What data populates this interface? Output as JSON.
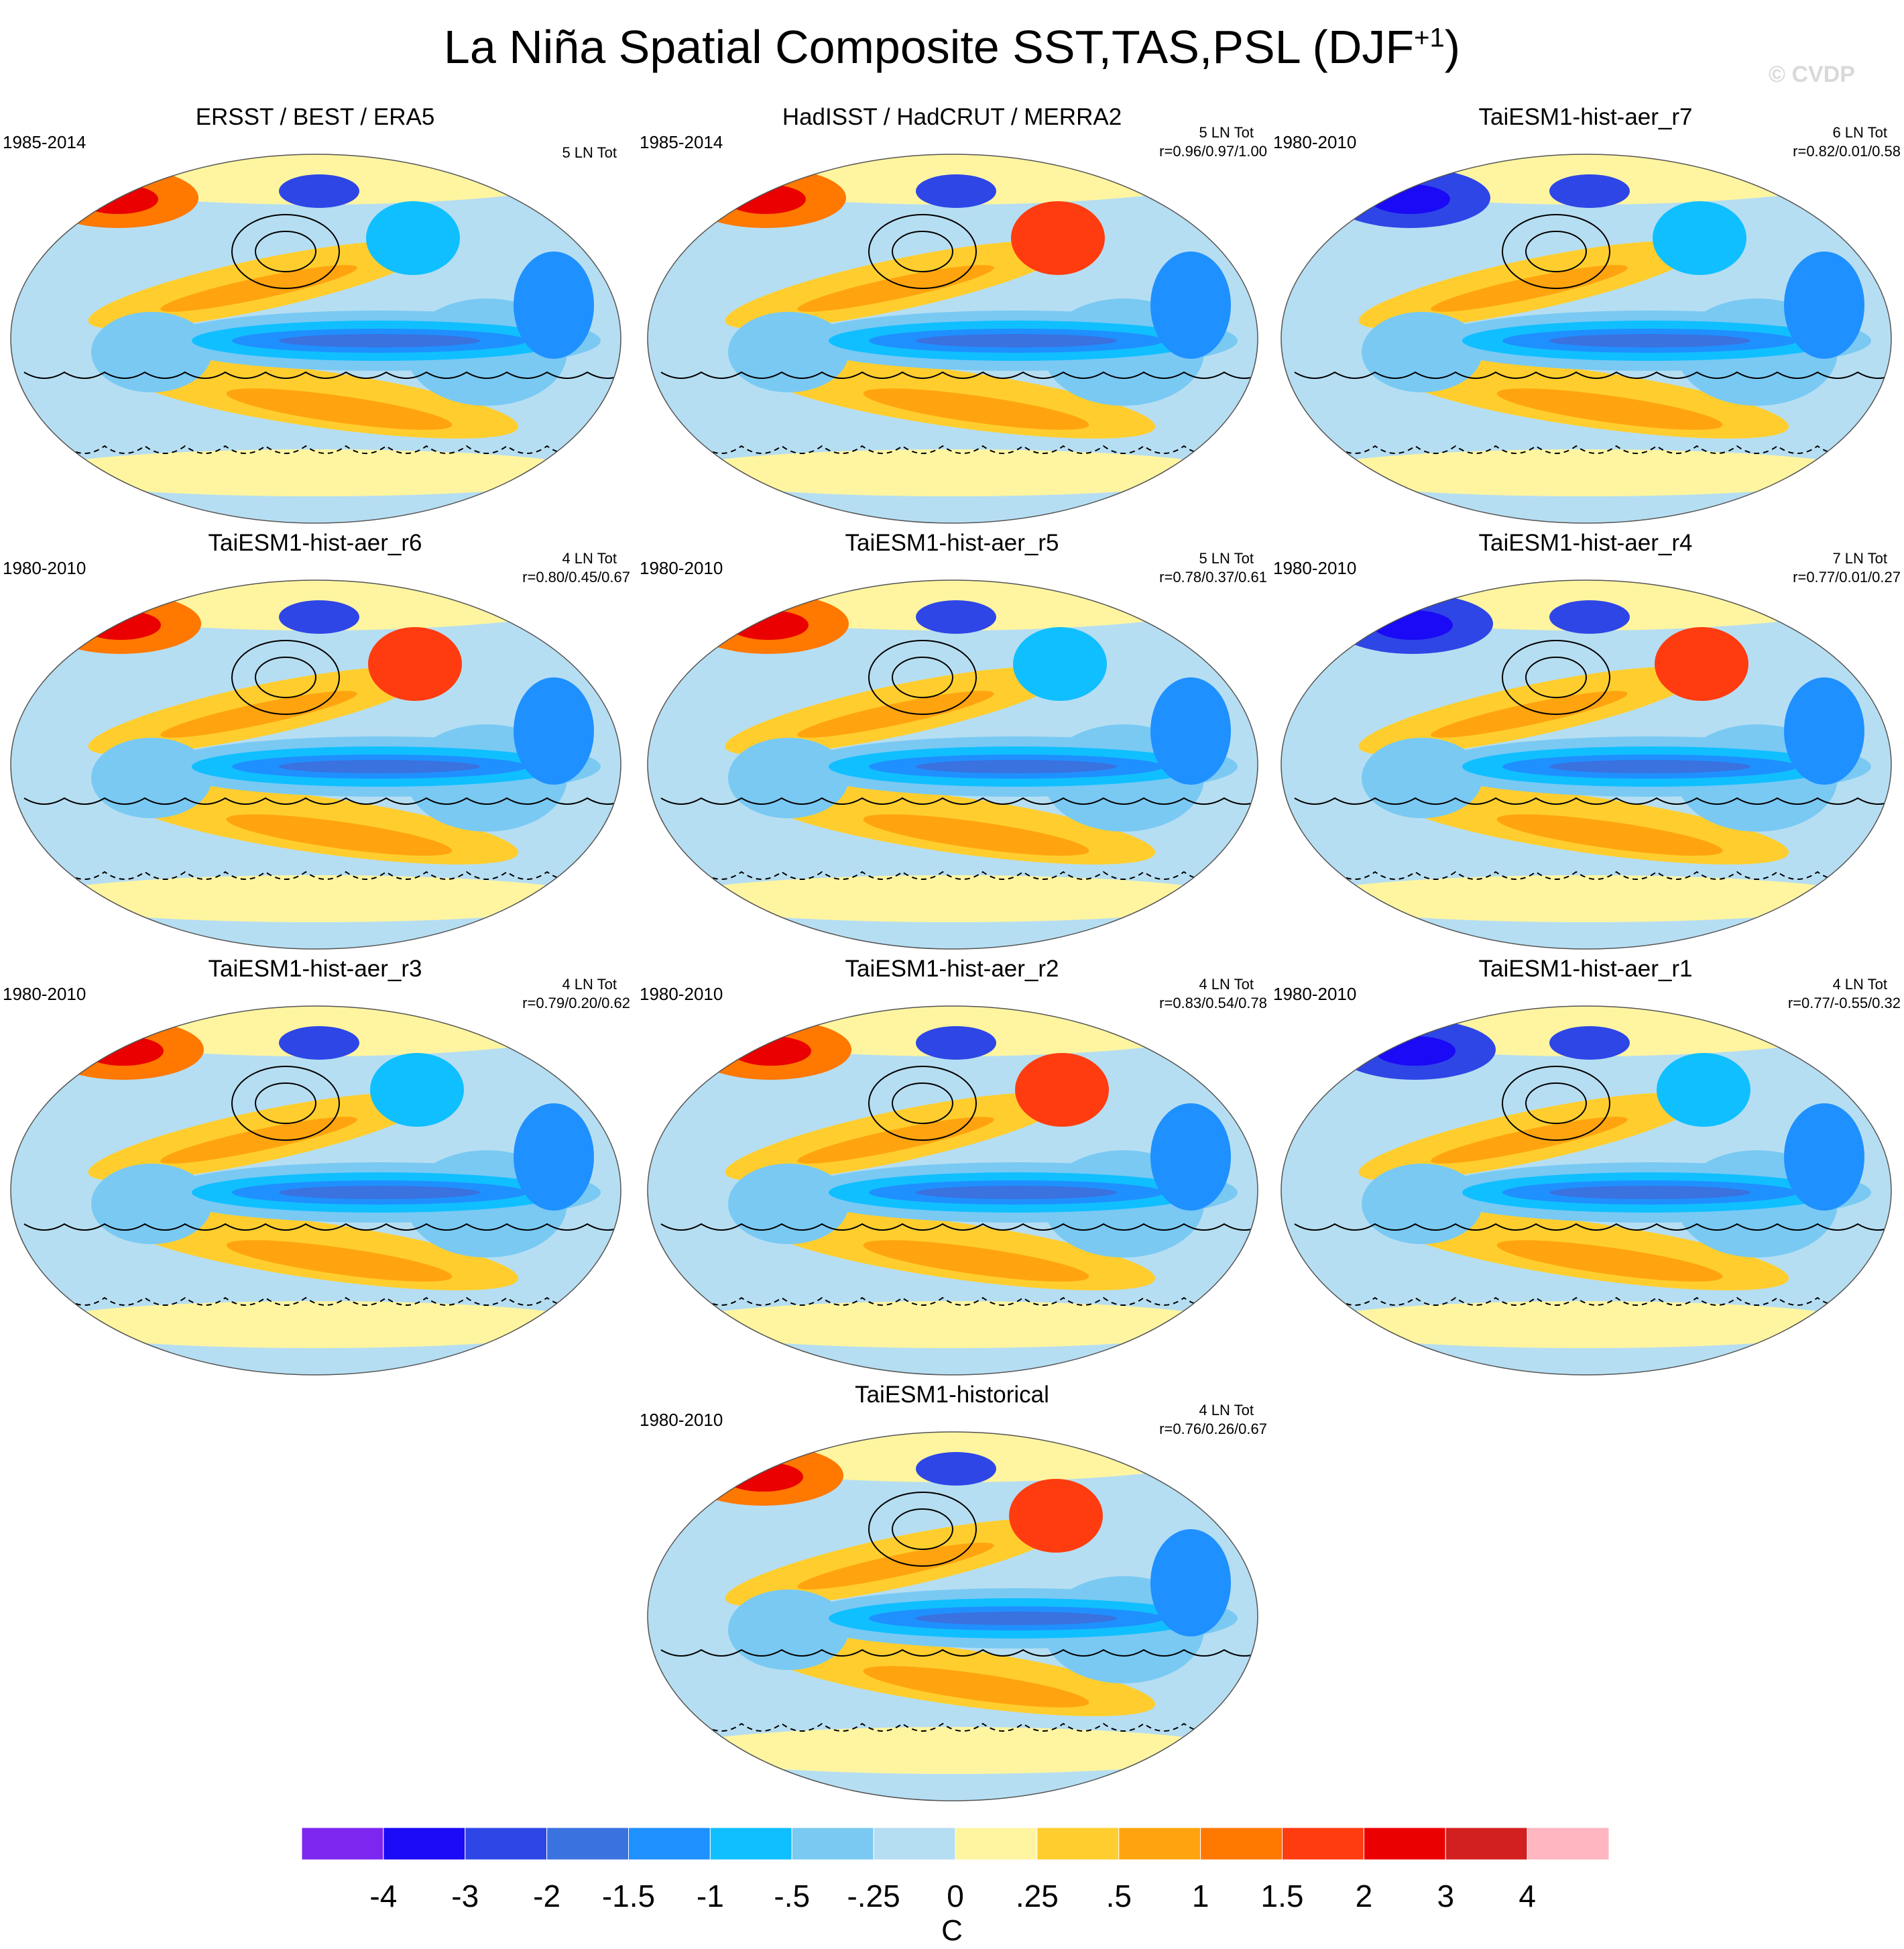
{
  "title": {
    "main": "La Niña Spatial Composite SST,TAS,PSL (DJF",
    "sup": "+1",
    "close": ")"
  },
  "watermark": "© CVDP",
  "panels": [
    {
      "title": "ERSST / BEST / ERA5",
      "period": "1985-2014",
      "count": "5 LN Tot",
      "corr": ""
    },
    {
      "title": "HadISST / HadCRUT / MERRA2",
      "period": "1985-2014",
      "count": "5 LN Tot",
      "corr": "r=0.96/0.97/1.00"
    },
    {
      "title": "TaiESM1-hist-aer_r7",
      "period": "1980-2010",
      "count": "6 LN Tot",
      "corr": "r=0.82/0.01/0.58"
    },
    {
      "title": "TaiESM1-hist-aer_r6",
      "period": "1980-2010",
      "count": "4 LN Tot",
      "corr": "r=0.80/0.45/0.67"
    },
    {
      "title": "TaiESM1-hist-aer_r5",
      "period": "1980-2010",
      "count": "5 LN Tot",
      "corr": "r=0.78/0.37/0.61"
    },
    {
      "title": "TaiESM1-hist-aer_r4",
      "period": "1980-2010",
      "count": "7 LN Tot",
      "corr": "r=0.77/0.01/0.27"
    },
    {
      "title": "TaiESM1-hist-aer_r3",
      "period": "1980-2010",
      "count": "4 LN Tot",
      "corr": "r=0.79/0.20/0.62"
    },
    {
      "title": "TaiESM1-hist-aer_r2",
      "period": "1980-2010",
      "count": "4 LN Tot",
      "corr": "r=0.83/0.54/0.78"
    },
    {
      "title": "TaiESM1-hist-aer_r1",
      "period": "1980-2010",
      "count": "4 LN Tot",
      "corr": "r=0.77/-0.55/0.32"
    },
    {
      "title": "TaiESM1-historical",
      "period": "1980-2010",
      "count": "4 LN Tot",
      "corr": "r=0.76/0.26/0.67"
    }
  ],
  "chart_data": {
    "type": "heatmap",
    "title": "La Niña Spatial Composite SST,TAS,PSL (DJF+1)",
    "units": "C",
    "colorbar": {
      "tick_labels": [
        "-4",
        "-3",
        "-2",
        "-1.5",
        "-1",
        "-.5",
        "-.25",
        "0",
        ".25",
        ".5",
        "1",
        "1.5",
        "2",
        "3",
        "4"
      ],
      "colors": [
        "#7d26f0",
        "#1a0af5",
        "#2e46e6",
        "#3a72e0",
        "#1f90ff",
        "#10bfff",
        "#79c9f3",
        "#b6def2",
        "#fff5a0",
        "#ffce2e",
        "#ffa40f",
        "#ff7800",
        "#ff3c0f",
        "#ea0000",
        "#d21f1f",
        "#ffb6c1"
      ]
    },
    "maps": [
      {
        "name": "ERSST / BEST / ERA5",
        "period": "1985-2014",
        "la_nina_events": 5
      },
      {
        "name": "HadISST / HadCRUT / MERRA2",
        "period": "1985-2014",
        "la_nina_events": 5,
        "pattern_corr": [
          0.96,
          0.97,
          1.0
        ]
      },
      {
        "name": "TaiESM1-hist-aer_r7",
        "period": "1980-2010",
        "la_nina_events": 6,
        "pattern_corr": [
          0.82,
          0.01,
          0.58
        ]
      },
      {
        "name": "TaiESM1-hist-aer_r6",
        "period": "1980-2010",
        "la_nina_events": 4,
        "pattern_corr": [
          0.8,
          0.45,
          0.67
        ]
      },
      {
        "name": "TaiESM1-hist-aer_r5",
        "period": "1980-2010",
        "la_nina_events": 5,
        "pattern_corr": [
          0.78,
          0.37,
          0.61
        ]
      },
      {
        "name": "TaiESM1-hist-aer_r4",
        "period": "1980-2010",
        "la_nina_events": 7,
        "pattern_corr": [
          0.77,
          0.01,
          0.27
        ]
      },
      {
        "name": "TaiESM1-hist-aer_r3",
        "period": "1980-2010",
        "la_nina_events": 4,
        "pattern_corr": [
          0.79,
          0.2,
          0.62
        ]
      },
      {
        "name": "TaiESM1-hist-aer_r2",
        "period": "1980-2010",
        "la_nina_events": 4,
        "pattern_corr": [
          0.83,
          0.54,
          0.78
        ]
      },
      {
        "name": "TaiESM1-hist-aer_r1",
        "period": "1980-2010",
        "la_nina_events": 4,
        "pattern_corr": [
          0.77,
          -0.55,
          0.32
        ]
      },
      {
        "name": "TaiESM1-historical",
        "period": "1980-2010",
        "la_nina_events": 4,
        "pattern_corr": [
          0.76,
          0.26,
          0.67
        ]
      }
    ]
  }
}
